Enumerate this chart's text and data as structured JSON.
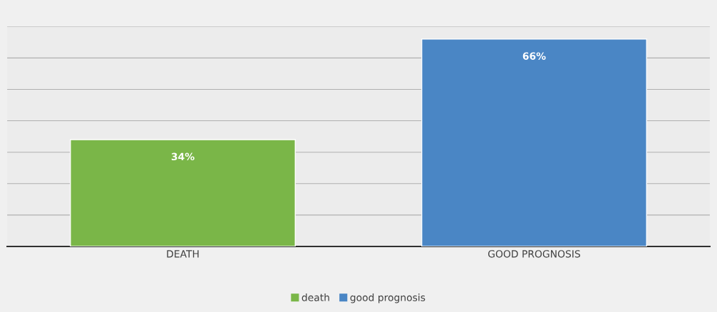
{
  "chart_data": {
    "type": "bar",
    "categories": [
      "DEATH",
      "GOOD PROGNOSIS"
    ],
    "series": [
      {
        "name": "death",
        "color": "#7ab648",
        "values": [
          34,
          null
        ],
        "value_labels": [
          "34%",
          null
        ]
      },
      {
        "name": "good prognosis",
        "color": "#4a86c5",
        "values": [
          null,
          66
        ],
        "value_labels": [
          null,
          "66%"
        ]
      }
    ],
    "ylim": [
      0,
      70
    ],
    "yticks": [
      {
        "value": 0,
        "label": null
      },
      {
        "value": 10,
        "label": null
      },
      {
        "value": 20,
        "label": null
      },
      {
        "value": 30,
        "label": null
      },
      {
        "value": 40,
        "label": null
      },
      {
        "value": 50,
        "label": null
      },
      {
        "value": 60,
        "label": null
      },
      {
        "value": 70,
        "label": null
      }
    ],
    "tick_labels": "x",
    "grid": "y",
    "legend": "bottom"
  }
}
